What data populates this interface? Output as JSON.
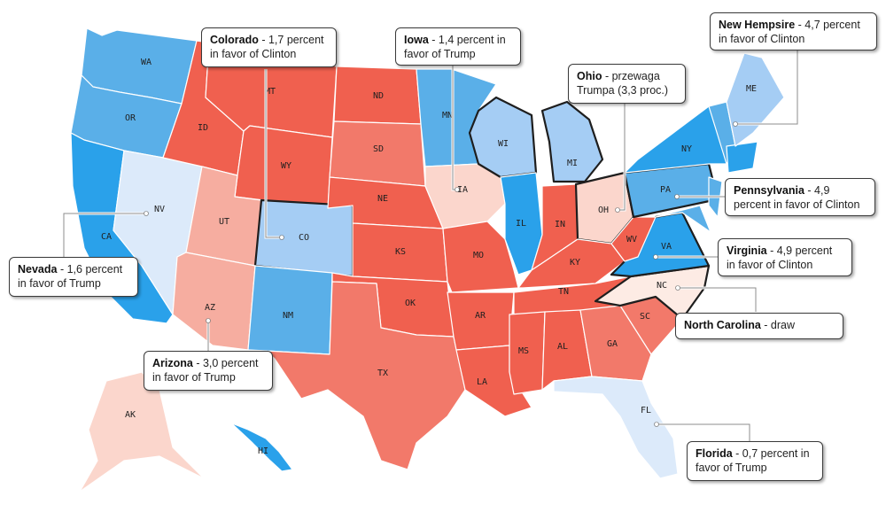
{
  "colors": {
    "strong_dem": "#2aa1ea",
    "lean_dem": "#5aafe8",
    "tilt_dem": "#a5cdf4",
    "toss_up_dem": "#dceafa",
    "strong_rep": "#f0604f",
    "lean_rep": "#f2796a",
    "tilt_rep": "#f6ada0",
    "toss_up_rep": "#fbd6cc",
    "draw": "#fdebe4",
    "border": "#ffffff",
    "highlight_border": "#1e1e1e"
  },
  "states": {
    "WA": "WA",
    "OR": "OR",
    "CA": "CA",
    "NV": "NV",
    "ID": "ID",
    "MT": "MT",
    "WY": "WY",
    "UT": "UT",
    "CO": "CO",
    "AZ": "AZ",
    "NM": "NM",
    "ND": "ND",
    "SD": "SD",
    "NE": "NE",
    "KS": "KS",
    "OK": "OK",
    "TX": "TX",
    "MN": "MN",
    "IA": "IA",
    "MO": "MO",
    "AR": "AR",
    "LA": "LA",
    "WI": "WI",
    "IL": "IL",
    "MI": "MI",
    "IN": "IN",
    "OH": "OH",
    "KY": "KY",
    "TN": "TN",
    "MS": "MS",
    "AL": "AL",
    "GA": "GA",
    "FL": "FL",
    "SC": "SC",
    "NC": "NC",
    "VA": "VA",
    "WV": "WV",
    "PA": "PA",
    "NY": "NY",
    "ME": "ME",
    "AK": "AK",
    "HI": "HI"
  },
  "callouts": {
    "colorado": {
      "state": "Colorado",
      "text": " - 1,7 percent in favor of Clinton"
    },
    "iowa": {
      "state": "Iowa",
      "text": " - 1,4 percent in favor of Trump"
    },
    "ohio": {
      "state": "Ohio",
      "text": " - przewaga Trumpa (3,3 proc.)"
    },
    "new_hampshire": {
      "state": "New Hempsire",
      "text": " - 4,7 percent in favor of Clinton"
    },
    "pennsylvania": {
      "state": "Pennsylvania",
      "text": " - 4,9 percent in favor of Clinton"
    },
    "virginia": {
      "state": "Virginia",
      "text": " - 4,9 percent in favor of Clinton"
    },
    "north_carolina": {
      "state": "North Carolina",
      "text": " - draw"
    },
    "nevada": {
      "state": "Nevada",
      "text": " - 1,6 percent in favor of Trump"
    },
    "arizona": {
      "state": "Arizona",
      "text": " - 3,0 percent in favor of Trump"
    },
    "florida": {
      "state": "Florida",
      "text": " - 0,7 percent in favor of Trump"
    }
  }
}
